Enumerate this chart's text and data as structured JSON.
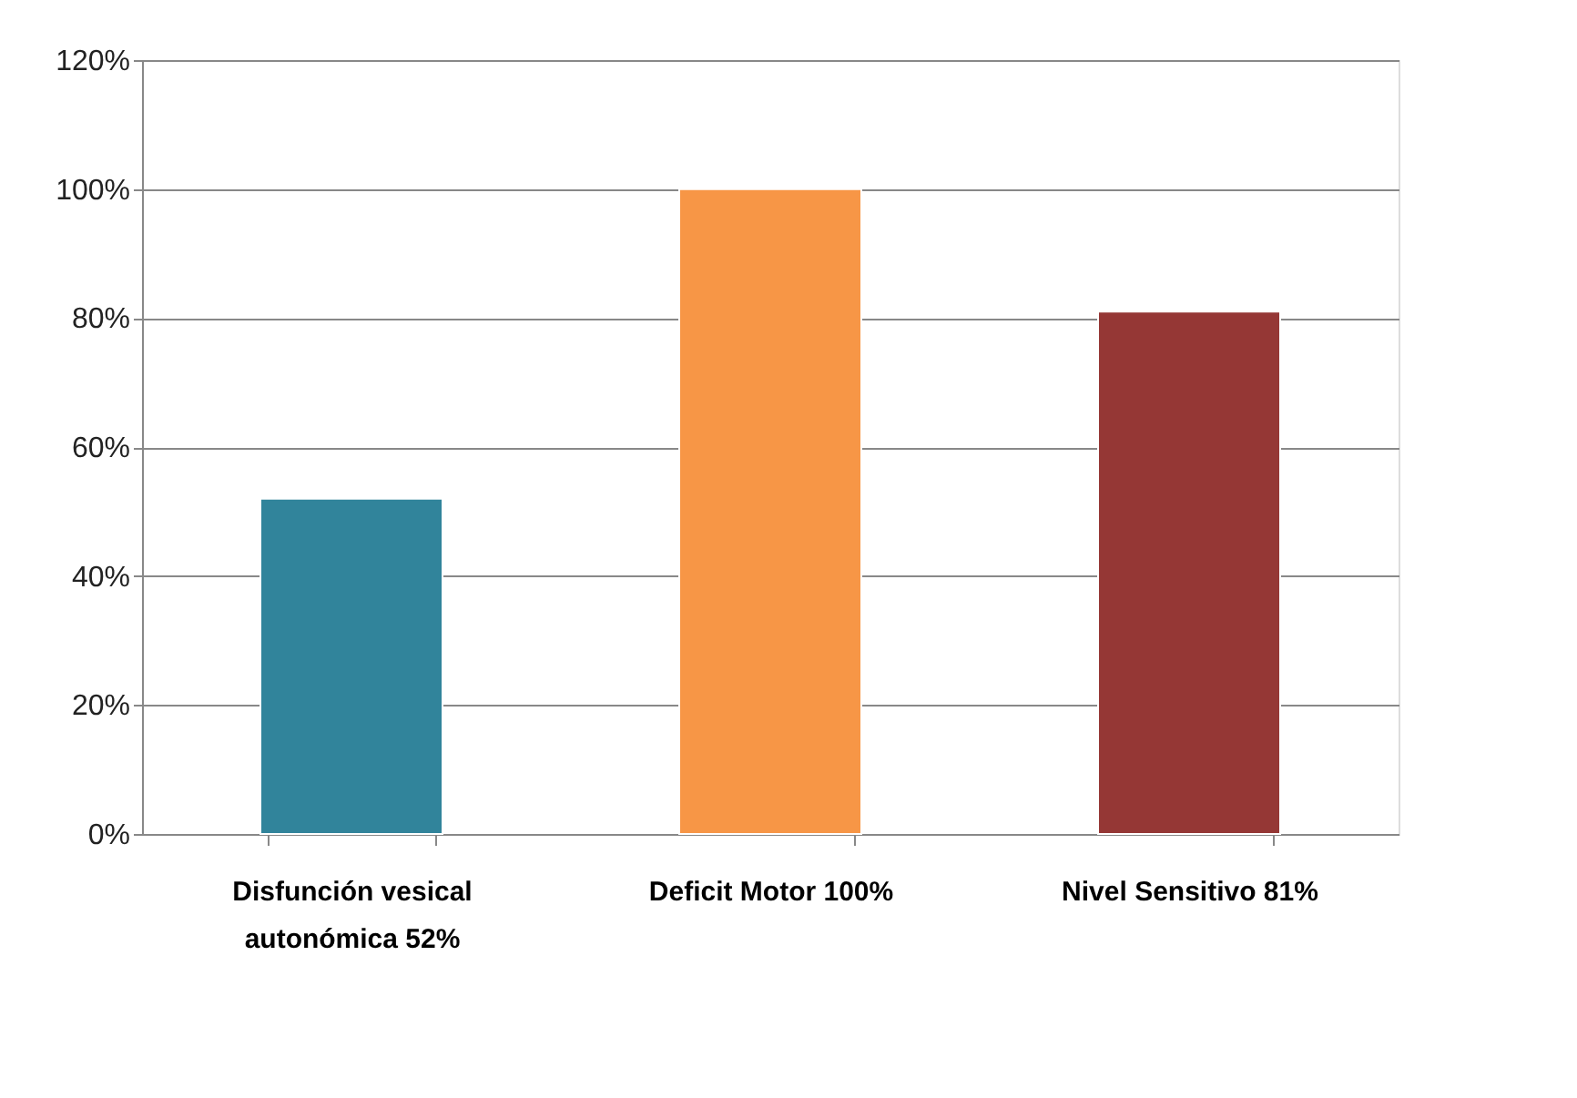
{
  "chart_data": {
    "type": "bar",
    "categories": [
      "Disfunción vesical autonómica  52%",
      "Deficit Motor 100%",
      "Nivel Sensitivo 81%"
    ],
    "values": [
      52,
      100,
      81
    ],
    "colors": [
      "#31849b",
      "#f79646",
      "#953735"
    ],
    "ylim": [
      0,
      120
    ],
    "yticks": [
      {
        "value": 0,
        "label": "0%"
      },
      {
        "value": 20,
        "label": "20%"
      },
      {
        "value": 40,
        "label": "40%"
      },
      {
        "value": 60,
        "label": "60%"
      },
      {
        "value": 80,
        "label": "80%"
      },
      {
        "value": 100,
        "label": "100%"
      },
      {
        "value": 120,
        "label": "120%"
      }
    ],
    "grid": "y"
  }
}
